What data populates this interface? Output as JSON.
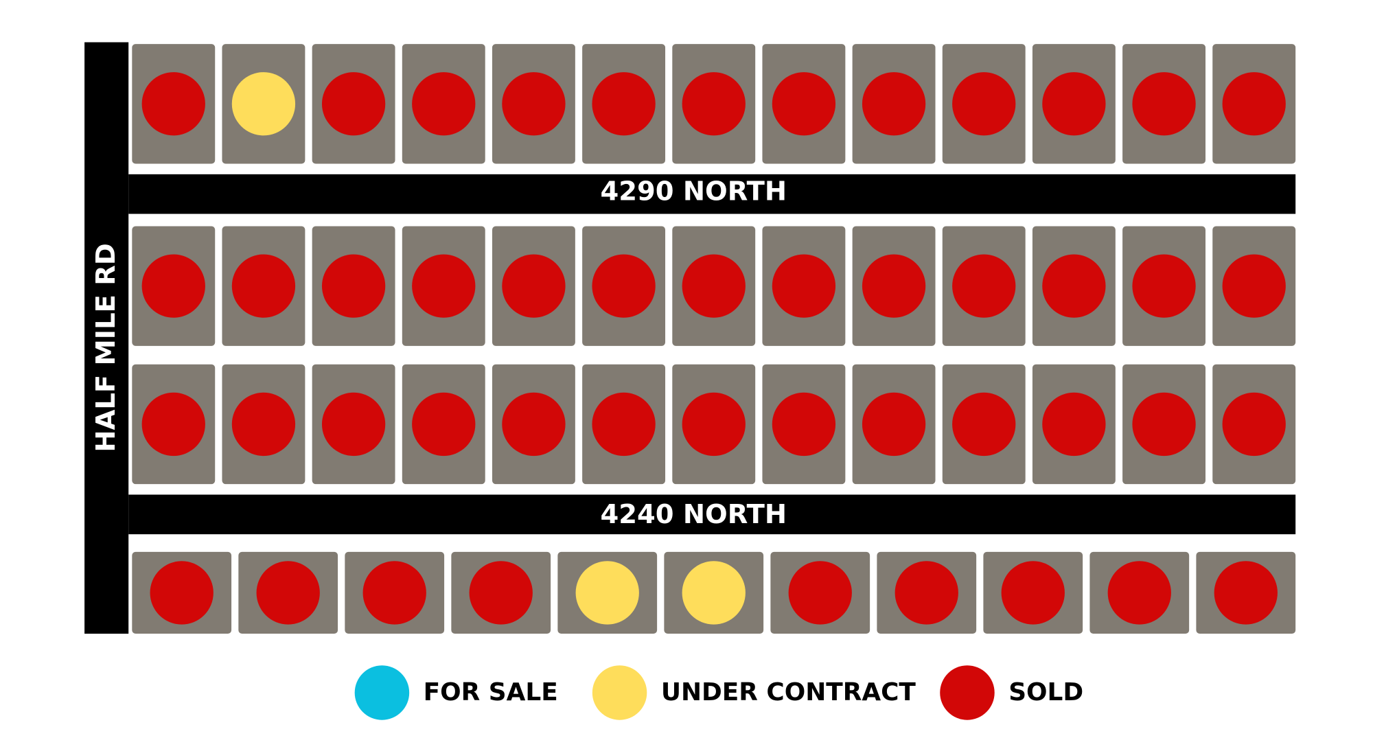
{
  "roads": {
    "vertical": "HALF MILE RD",
    "upper": "4290 NORTH",
    "lower": "4240 NORTH"
  },
  "legend": [
    {
      "label": "FOR SALE",
      "color": "#0bbfe0"
    },
    {
      "label": "UNDER CONTRACT",
      "color": "#fedd5b"
    },
    {
      "label": "SOLD",
      "color": "#d20707"
    }
  ],
  "blocks": [
    [
      2,
      1,
      2,
      2,
      2,
      2,
      2,
      2,
      2,
      2,
      2,
      2,
      2
    ],
    [
      2,
      2,
      2,
      2,
      2,
      2,
      2,
      2,
      2,
      2,
      2,
      2,
      2
    ],
    [
      2,
      2,
      2,
      2,
      2,
      2,
      2,
      2,
      2,
      2,
      2,
      2,
      2
    ],
    [
      2,
      2,
      2,
      2,
      1,
      1,
      2,
      2,
      2,
      2,
      2
    ]
  ]
}
